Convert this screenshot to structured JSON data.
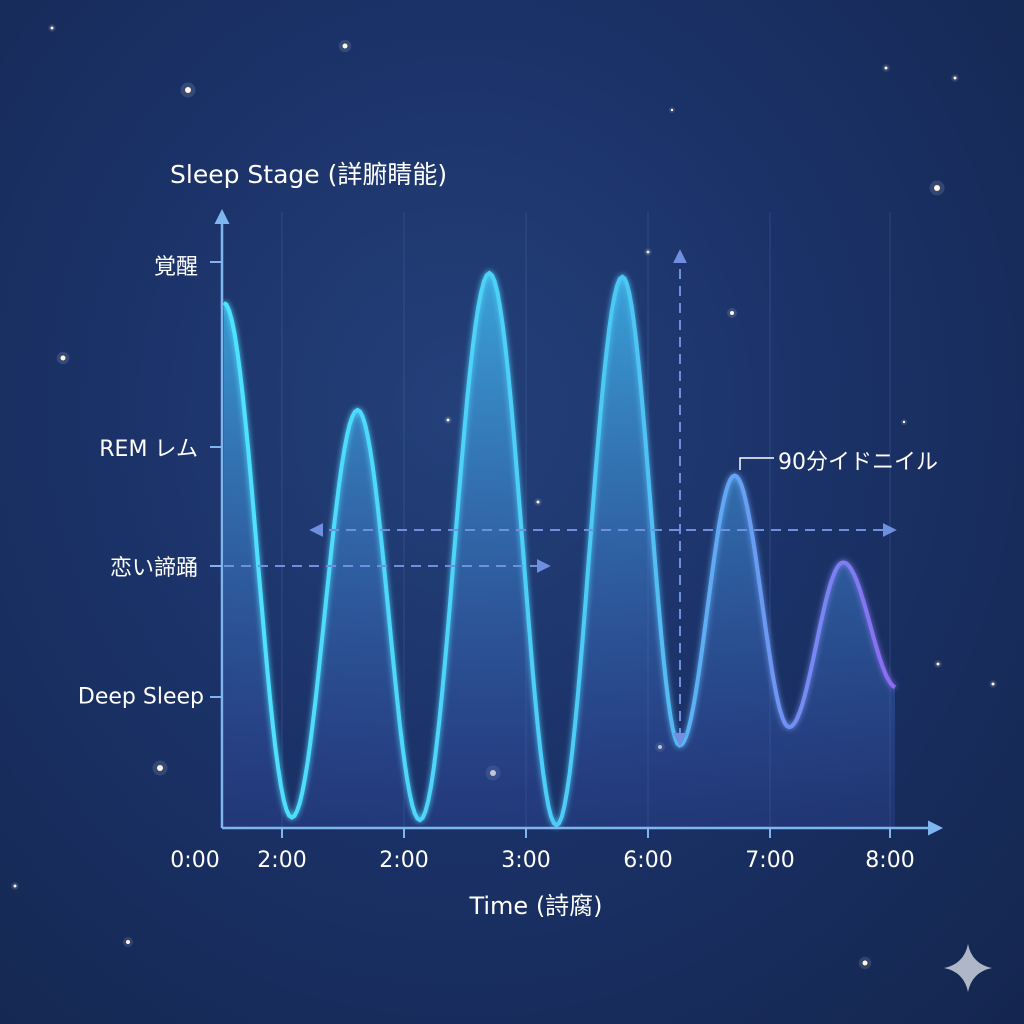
{
  "chart_data": {
    "type": "area",
    "title": "",
    "ylabel": "Sleep Stage (詳腑睛能)",
    "xlabel": "Time (詩腐)",
    "x_tick_labels": [
      "0:00",
      "2:00",
      "2:00",
      "3:00",
      "6:00",
      "7:00",
      "8:00"
    ],
    "y_tick_labels": [
      "Deep Sleep",
      "恋い諦踊",
      "REM レム",
      "覚醒"
    ],
    "y_tick_values": [
      1,
      2,
      3,
      4
    ],
    "ylim": [
      0,
      4.3
    ],
    "xlim": [
      0,
      6.3
    ],
    "grid": "vertical",
    "series": [
      {
        "x": [
          0.03,
          1.08,
          1.62,
          2.13,
          2.7,
          3.25,
          3.79,
          4.26,
          4.71,
          5.16,
          5.61,
          6.06
        ],
        "y": [
          3.78,
          0.08,
          3.2,
          0.06,
          3.94,
          0.02,
          3.92,
          0.63,
          2.76,
          0.77,
          2.03,
          1.07
        ]
      }
    ],
    "annotations": [
      {
        "text": "90分イドニイル",
        "x": 4.71,
        "y": 2.76
      }
    ],
    "colors": {
      "line_start": "#4fe3ff",
      "line_end": "#8a6cf0",
      "axis": "#7fb6f0",
      "background": "#1b3268"
    }
  }
}
